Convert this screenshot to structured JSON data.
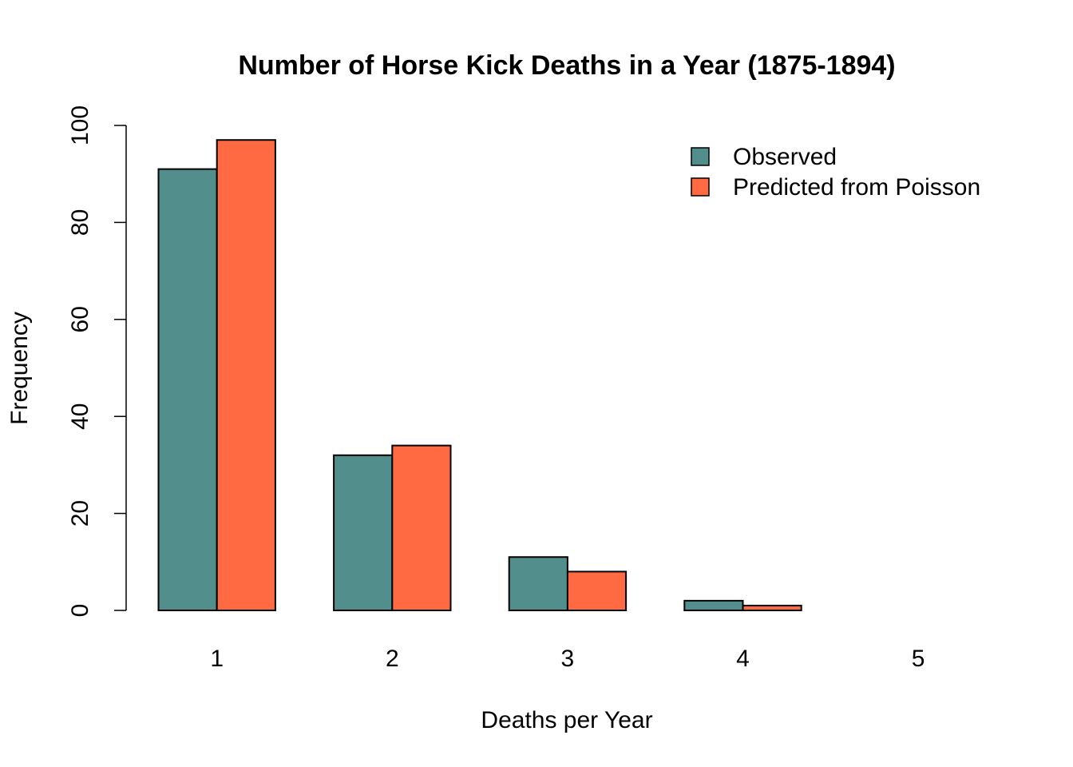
{
  "chart_data": {
    "type": "bar",
    "title": "Number of Horse Kick Deaths in a Year (1875-1894)",
    "xlabel": "Deaths per Year",
    "ylabel": "Frequency",
    "ylim": [
      0,
      100
    ],
    "yticks": [
      0,
      20,
      40,
      60,
      80,
      100
    ],
    "categories": [
      "1",
      "2",
      "3",
      "4",
      "5"
    ],
    "series": [
      {
        "name": "Observed",
        "color": "#528f8c",
        "values": [
          91,
          32,
          11,
          2,
          0
        ]
      },
      {
        "name": "Predicted from Poisson",
        "color": "#ff6a42",
        "values": [
          97,
          34,
          8,
          1,
          0
        ]
      }
    ],
    "legend_position": "top-right",
    "grid": false
  }
}
